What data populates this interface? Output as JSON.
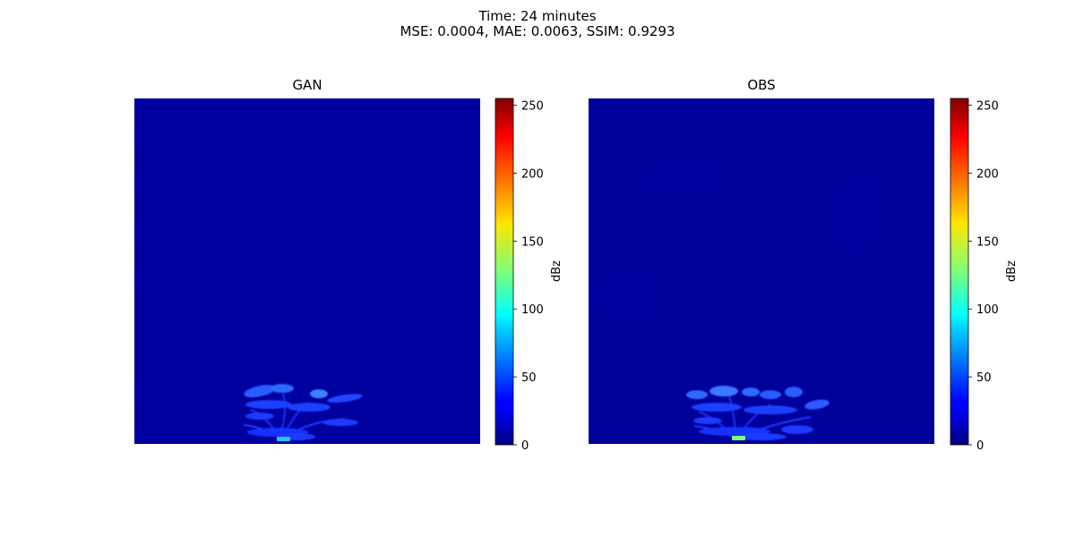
{
  "figure": {
    "title_line1": "Time: 24 minutes",
    "title_line2": "MSE: 0.0004, MAE: 0.0063, SSIM: 0.9293"
  },
  "chart_data": [
    {
      "type": "heatmap",
      "title": "GAN",
      "colormap": "jet",
      "colorbar": {
        "label": "dBz",
        "range": [
          0,
          255
        ],
        "ticks": [
          "0",
          "50",
          "100",
          "150",
          "200",
          "250"
        ]
      },
      "background_value": 12,
      "axes_visible": false
    },
    {
      "type": "heatmap",
      "title": "OBS",
      "colormap": "jet",
      "colorbar": {
        "label": "dBz",
        "range": [
          0,
          255
        ],
        "ticks": [
          "0",
          "50",
          "100",
          "150",
          "200",
          "250"
        ]
      },
      "background_value": 10,
      "axes_visible": false
    }
  ]
}
